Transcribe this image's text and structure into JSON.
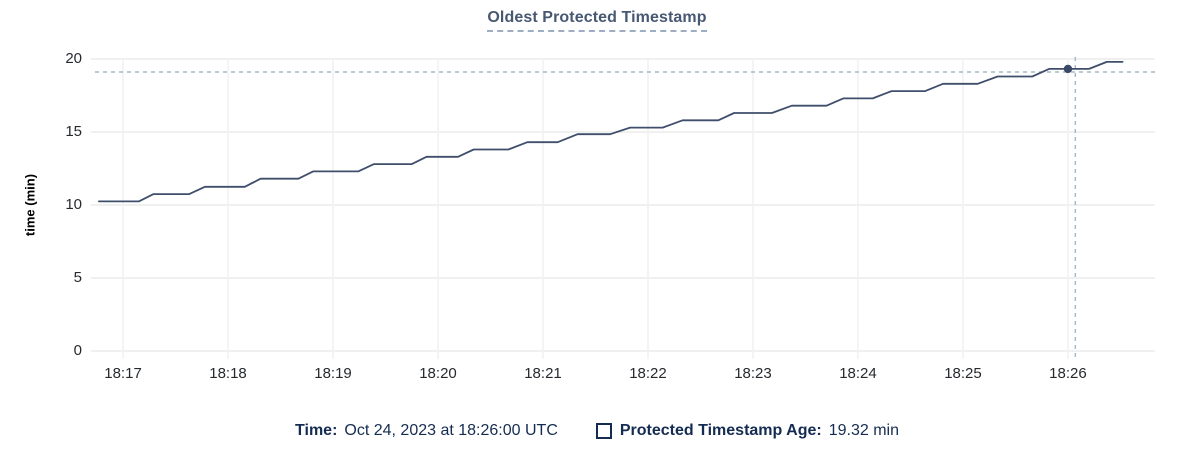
{
  "title": "Oldest Protected Timestamp",
  "chart_data": {
    "type": "line",
    "title": "Oldest Protected Timestamp",
    "xlabel": "",
    "ylabel": "time (min)",
    "x_unit": "minutes after 18:00 (times shown as 18:MM on Oct 24, 2023 UTC)",
    "xlim": [
      16.733,
      26.829
    ],
    "ylim": [
      0,
      20
    ],
    "grid": true,
    "xticks": [
      {
        "t": 17,
        "label": "18:17"
      },
      {
        "t": 18,
        "label": "18:18"
      },
      {
        "t": 19,
        "label": "18:19"
      },
      {
        "t": 20,
        "label": "18:20"
      },
      {
        "t": 21,
        "label": "18:21"
      },
      {
        "t": 22,
        "label": "18:22"
      },
      {
        "t": 23,
        "label": "18:23"
      },
      {
        "t": 24,
        "label": "18:24"
      },
      {
        "t": 25,
        "label": "18:25"
      },
      {
        "t": 26,
        "label": "18:26"
      }
    ],
    "yticks": [
      {
        "v": 0,
        "label": "0"
      },
      {
        "v": 5,
        "label": "5"
      },
      {
        "v": 10,
        "label": "10"
      },
      {
        "v": 15,
        "label": "15"
      },
      {
        "v": 20,
        "label": "20"
      }
    ],
    "series": [
      {
        "name": "Protected Timestamp Age",
        "points": [
          [
            16.77,
            10.25
          ],
          [
            17.15,
            10.25
          ],
          [
            17.29,
            10.75
          ],
          [
            17.63,
            10.75
          ],
          [
            17.78,
            11.25
          ],
          [
            18.16,
            11.25
          ],
          [
            18.31,
            11.8
          ],
          [
            18.67,
            11.8
          ],
          [
            18.81,
            12.3
          ],
          [
            19.24,
            12.3
          ],
          [
            19.39,
            12.8
          ],
          [
            19.75,
            12.8
          ],
          [
            19.89,
            13.3
          ],
          [
            20.19,
            13.3
          ],
          [
            20.34,
            13.8
          ],
          [
            20.67,
            13.8
          ],
          [
            20.85,
            14.3
          ],
          [
            21.14,
            14.3
          ],
          [
            21.33,
            14.85
          ],
          [
            21.64,
            14.85
          ],
          [
            21.83,
            15.3
          ],
          [
            22.14,
            15.3
          ],
          [
            22.33,
            15.8
          ],
          [
            22.67,
            15.8
          ],
          [
            22.82,
            16.3
          ],
          [
            23.18,
            16.3
          ],
          [
            23.37,
            16.8
          ],
          [
            23.7,
            16.8
          ],
          [
            23.86,
            17.3
          ],
          [
            24.14,
            17.3
          ],
          [
            24.32,
            17.8
          ],
          [
            24.64,
            17.8
          ],
          [
            24.81,
            18.3
          ],
          [
            25.14,
            18.3
          ],
          [
            25.33,
            18.8
          ],
          [
            25.66,
            18.8
          ],
          [
            25.82,
            19.32
          ],
          [
            26.2,
            19.32
          ],
          [
            26.37,
            19.8
          ],
          [
            26.52,
            19.8
          ]
        ]
      }
    ],
    "hover": {
      "point": {
        "t": 26.0,
        "time": "18:26:00",
        "value": 19.32
      },
      "crosshair": {
        "t": 26.07,
        "value": 19.11
      }
    }
  },
  "footer": {
    "time_label": "Time:",
    "time_value": "Oct 24, 2023 at 18:26:00 UTC",
    "series_label": "Protected Timestamp Age:",
    "series_value": "19.32 min"
  },
  "colors": {
    "title": "#475872",
    "line": "#3f4f6b",
    "dot": "#3a4a66",
    "crosshair": "#a6b8c4",
    "grid_h": "#ececec",
    "grid_v": "#f1f1f1",
    "axis_text": "#26292e",
    "footer_text": "#152c52"
  }
}
